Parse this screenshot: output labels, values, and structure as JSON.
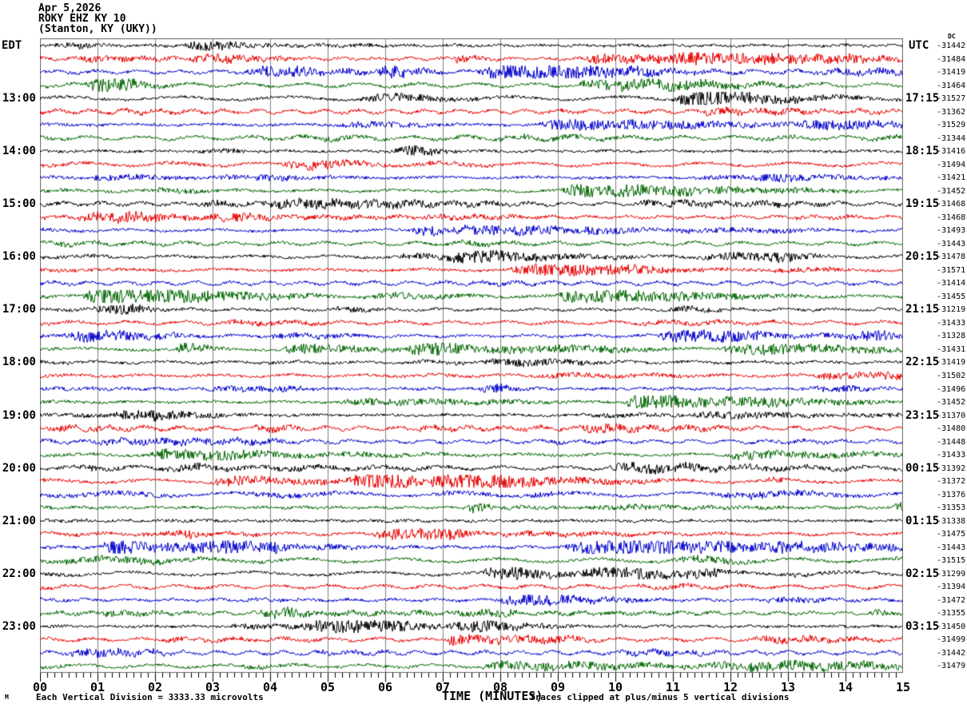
{
  "header": {
    "line1": "Apr 5,2026",
    "line2": "ROKY EHZ KY 10",
    "line3": "(Stanton, KY (UKY))"
  },
  "axes": {
    "left_timezone_label": "EDT",
    "right_timezone_label": "UTC",
    "dc_column_header": "DC",
    "x_title": "TIME (MINUTES)",
    "x_ticks": [
      "00",
      "01",
      "02",
      "03",
      "04",
      "05",
      "06",
      "07",
      "08",
      "09",
      "10",
      "11",
      "12",
      "13",
      "14",
      "15"
    ]
  },
  "left_hour_labels": [
    "13:00",
    "14:00",
    "15:00",
    "16:00",
    "17:00",
    "18:00",
    "19:00",
    "20:00",
    "21:00",
    "22:00",
    "23:00"
  ],
  "right_hour_labels": [
    "17:15",
    "18:15",
    "19:15",
    "20:15",
    "21:15",
    "22:15",
    "23:15",
    "00:15",
    "01:15",
    "02:15",
    "03:15"
  ],
  "dc_values": [
    "-31442",
    "-31484",
    "-31419",
    "-31464",
    "-31527",
    "-31362",
    "-31529",
    "-31344",
    "-31416",
    "-31494",
    "-31421",
    "-31452",
    "-31468",
    "-31468",
    "-31493",
    "-31443",
    "-31478",
    "-31571",
    "-31414",
    "-31455",
    "-31219",
    "-31433",
    "-31328",
    "-31431",
    "-31419",
    "-31502",
    "-31496",
    "-31452",
    "-31370",
    "-31480",
    "-31448",
    "-31433",
    "-31392",
    "-31372",
    "-31376",
    "-31353",
    "-31338",
    "-31475",
    "-31443",
    "-31515",
    "-31299",
    "-31394",
    "-31472",
    "-31355",
    "-31450",
    "-31499",
    "-31442",
    "-31479"
  ],
  "footer": {
    "scale_note": "Each Vertical Division = 3333.33 microvolts",
    "clip_note": "Traces clipped at plus/minus 5 vertical divisions",
    "corner_mark": "M"
  },
  "style": {
    "trace_colors": [
      "#000000",
      "#e80000",
      "#0000cc",
      "#006600"
    ],
    "grid_color": "#808080",
    "border_color": "#666666",
    "background": "#ffffff"
  },
  "chart_data": {
    "type": "line",
    "subtype": "helicorder_seismogram",
    "title": "ROKY EHZ KY 10 (Stanton, KY (UKY)) — Apr 5,2026",
    "xlabel": "TIME (MINUTES)",
    "x_range_minutes": [
      0,
      15
    ],
    "x_major_tick_minutes": 1,
    "x_minor_ticks_per_minute": 8,
    "grid": true,
    "rows": 48,
    "rows_per_hour": 4,
    "row_span_minutes": 15,
    "edt_row_group_labels": [
      "13:00",
      "14:00",
      "15:00",
      "16:00",
      "17:00",
      "18:00",
      "19:00",
      "20:00",
      "21:00",
      "22:00",
      "23:00"
    ],
    "utc_row_group_labels": [
      "17:15",
      "18:15",
      "19:15",
      "20:15",
      "21:15",
      "22:15",
      "23:15",
      "00:15",
      "01:15",
      "02:15",
      "03:15"
    ],
    "dc_offsets": [
      -31442,
      -31484,
      -31419,
      -31464,
      -31527,
      -31362,
      -31529,
      -31344,
      -31416,
      -31494,
      -31421,
      -31452,
      -31468,
      -31468,
      -31493,
      -31443,
      -31478,
      -31571,
      -31414,
      -31455,
      -31219,
      -31433,
      -31328,
      -31431,
      -31419,
      -31502,
      -31496,
      -31452,
      -31370,
      -31480,
      -31448,
      -31433,
      -31392,
      -31372,
      -31376,
      -31353,
      -31338,
      -31475,
      -31443,
      -31515,
      -31299,
      -31394,
      -31472,
      -31355,
      -31450,
      -31499,
      -31442,
      -31479
    ],
    "vertical_division_microvolts": 3333.33,
    "clip_divisions": 5,
    "trace_color_cycle": [
      "black",
      "red",
      "blue",
      "green"
    ],
    "waveform_note": "continuous background seismic noise; individual sample values not resolvable from image"
  }
}
